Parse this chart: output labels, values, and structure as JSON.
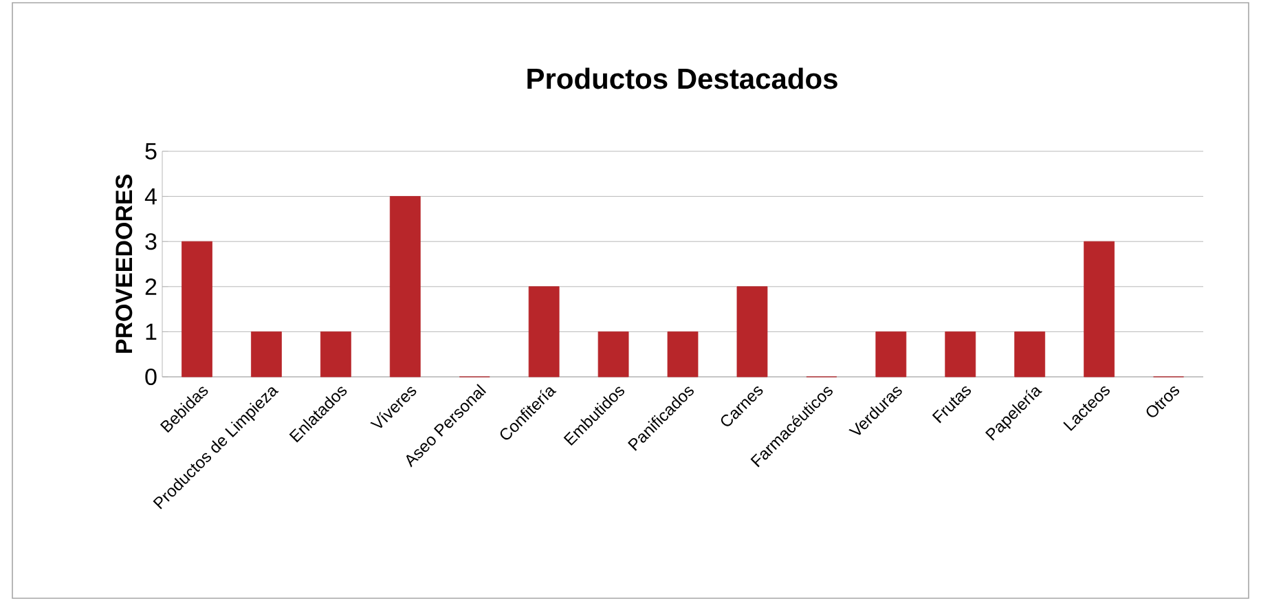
{
  "chart_data": {
    "type": "bar",
    "title": "Productos Destacados",
    "ylabel": "PROVEEDORES",
    "categories": [
      "Bebidas",
      "Productos de Limpieza",
      "Enlatados",
      "Víveres",
      "Aseo Personal",
      "Confitería",
      "Embutidos",
      "Panificados",
      "Carnes",
      "Farmacéuticos",
      "Verduras",
      "Frutas",
      "Papelería",
      "Lacteos",
      "Otros"
    ],
    "values": [
      3,
      1,
      1,
      4,
      0,
      2,
      1,
      1,
      2,
      0,
      1,
      1,
      1,
      3,
      0
    ],
    "color": "#b8262a",
    "ylim": [
      0,
      5
    ],
    "yticks": [
      0,
      1,
      2,
      3,
      4,
      5
    ],
    "grid": "y"
  }
}
